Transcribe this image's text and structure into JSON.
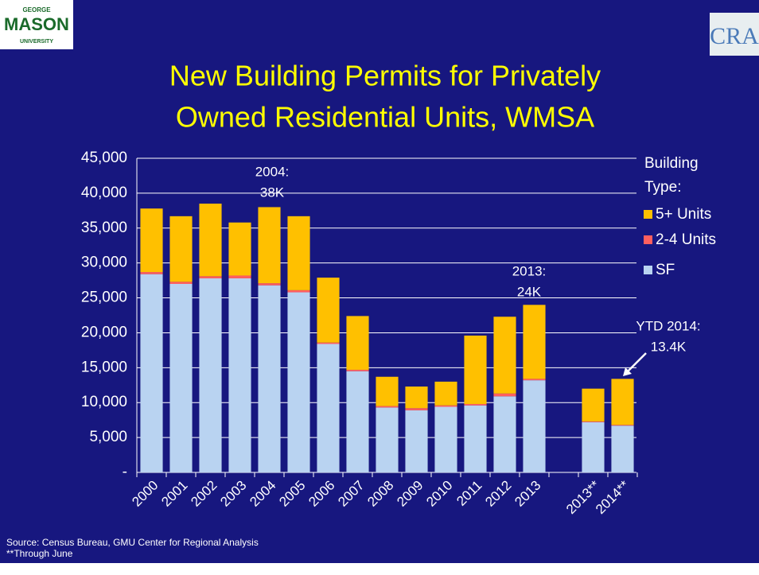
{
  "logo_left": [
    "GEORGE",
    "MASON",
    "UNIVERSITY"
  ],
  "logo_right": "CRA",
  "chart_data": {
    "type": "stacked_bar",
    "title": [
      "New Building Permits for Privately",
      "Owned Residential Units, WMSA"
    ],
    "categories": [
      "2000",
      "2001",
      "2002",
      "2003",
      "2004",
      "2005",
      "2006",
      "2007",
      "2008",
      "2009",
      "2010",
      "2011",
      "2012",
      "2013",
      null,
      "2013**",
      "2014**"
    ],
    "series": [
      {
        "name": "SF",
        "color": "#b9d3f1",
        "values": [
          28400,
          27000,
          27800,
          27800,
          26800,
          25800,
          18400,
          14500,
          9300,
          8900,
          9400,
          9600,
          10900,
          13200,
          null,
          7200,
          6700
        ]
      },
      {
        "name": "2-4 Units",
        "color": "#ff5f5f",
        "values": [
          300,
          300,
          300,
          400,
          300,
          300,
          200,
          200,
          200,
          300,
          200,
          200,
          400,
          200,
          null,
          100,
          100
        ]
      },
      {
        "name": "5+ Units",
        "color": "#ffc000",
        "values": [
          9100,
          9400,
          10400,
          7600,
          10900,
          10600,
          9300,
          7700,
          4200,
          3100,
          3400,
          9800,
          11000,
          10600,
          null,
          4700,
          6600
        ]
      }
    ],
    "ylim": [
      0,
      45000
    ],
    "yticks": [
      {
        "value": 0,
        "label": "-"
      },
      {
        "value": 5000,
        "label": "5,000"
      },
      {
        "value": 10000,
        "label": "10,000"
      },
      {
        "value": 15000,
        "label": "15,000"
      },
      {
        "value": 20000,
        "label": "20,000"
      },
      {
        "value": 25000,
        "label": "25,000"
      },
      {
        "value": 30000,
        "label": "30,000"
      },
      {
        "value": 35000,
        "label": "35,000"
      },
      {
        "value": 40000,
        "label": "40,000"
      },
      {
        "value": 45000,
        "label": "45,000"
      }
    ],
    "grid": true,
    "legend_title": [
      "Building",
      "Type:"
    ],
    "legend_position": "right",
    "annotations": [
      {
        "lines": [
          "2004:",
          "38K"
        ]
      },
      {
        "lines": [
          "2013:",
          "24K"
        ]
      },
      {
        "lines": [
          "YTD 2014:",
          "13.4K"
        ]
      }
    ],
    "source": [
      "Source: Census Bureau, GMU Center for Regional Analysis",
      "**Through June"
    ]
  }
}
